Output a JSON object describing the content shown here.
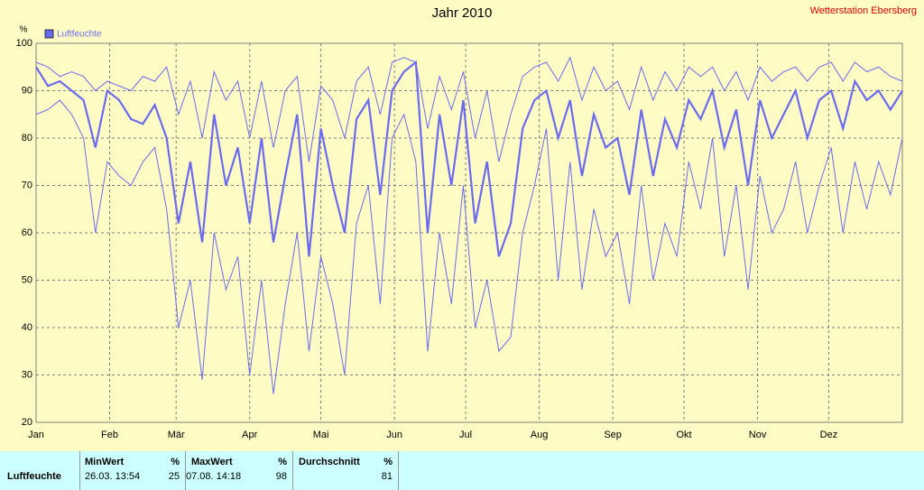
{
  "chart_data": {
    "type": "line",
    "title": "Jahr 2010",
    "station": "Wetterstation Ebersberg",
    "y_label": "%",
    "x": [
      0,
      5,
      10,
      15,
      20,
      25,
      30,
      35,
      40,
      45,
      50,
      55,
      60,
      65,
      70,
      75,
      80,
      85,
      90,
      95,
      100,
      105,
      110,
      115,
      120,
      125,
      130,
      135,
      140,
      145,
      150,
      155,
      160,
      165,
      170,
      175,
      180,
      185,
      190,
      195,
      200,
      205,
      210,
      215,
      220,
      225,
      230,
      235,
      240,
      245,
      250,
      255,
      260,
      265,
      270,
      275,
      280,
      285,
      290,
      295,
      300,
      305,
      310,
      315,
      320,
      325,
      330,
      335,
      340,
      345,
      350,
      355,
      360,
      365
    ],
    "series": [
      {
        "name": "Luftfeuchte",
        "color": "#6b6bf0",
        "values": [
          95,
          91,
          92,
          90,
          88,
          78,
          90,
          88,
          84,
          83,
          87,
          80,
          62,
          75,
          58,
          85,
          70,
          78,
          62,
          80,
          58,
          72,
          85,
          55,
          82,
          70,
          60,
          84,
          88,
          68,
          90,
          94,
          96,
          60,
          85,
          70,
          88,
          62,
          75,
          55,
          62,
          82,
          88,
          90,
          80,
          88,
          72,
          85,
          78,
          80,
          68,
          86,
          72,
          84,
          78,
          88,
          84,
          90,
          78,
          86,
          70,
          88,
          80,
          85,
          90,
          80,
          88,
          90,
          82,
          92,
          88,
          90,
          86,
          90
        ],
        "high": [
          96,
          95,
          93,
          94,
          93,
          90,
          92,
          91,
          90,
          93,
          92,
          95,
          85,
          92,
          80,
          94,
          88,
          92,
          80,
          92,
          78,
          90,
          93,
          75,
          91,
          88,
          80,
          92,
          95,
          85,
          96,
          97,
          96,
          82,
          93,
          86,
          94,
          80,
          90,
          75,
          85,
          93,
          95,
          96,
          92,
          97,
          88,
          95,
          90,
          92,
          86,
          95,
          88,
          94,
          90,
          95,
          93,
          95,
          90,
          94,
          88,
          95,
          92,
          94,
          95,
          92,
          95,
          96,
          92,
          96,
          94,
          95,
          93,
          92
        ],
        "low": [
          85,
          86,
          88,
          85,
          80,
          60,
          75,
          72,
          70,
          75,
          78,
          65,
          40,
          50,
          29,
          60,
          48,
          55,
          30,
          50,
          26,
          45,
          60,
          35,
          55,
          45,
          30,
          62,
          70,
          45,
          80,
          85,
          75,
          35,
          60,
          45,
          70,
          40,
          50,
          35,
          38,
          60,
          70,
          82,
          50,
          75,
          48,
          65,
          55,
          60,
          45,
          70,
          50,
          62,
          55,
          75,
          65,
          80,
          55,
          70,
          48,
          72,
          60,
          65,
          75,
          60,
          70,
          78,
          60,
          75,
          65,
          75,
          68,
          80
        ]
      }
    ],
    "xlim": [
      0,
      365
    ],
    "xticks": [
      {
        "value": 0,
        "label": "Jan"
      },
      {
        "value": 31,
        "label": "Feb"
      },
      {
        "value": 59,
        "label": "Mär"
      },
      {
        "value": 90,
        "label": "Apr"
      },
      {
        "value": 120,
        "label": "Mai"
      },
      {
        "value": 151,
        "label": "Jun"
      },
      {
        "value": 181,
        "label": "Jul"
      },
      {
        "value": 212,
        "label": "Aug"
      },
      {
        "value": 243,
        "label": "Sep"
      },
      {
        "value": 273,
        "label": "Okt"
      },
      {
        "value": 304,
        "label": "Nov"
      },
      {
        "value": 334,
        "label": "Dez"
      }
    ],
    "ylim": [
      20,
      100
    ],
    "yticks": [
      20,
      30,
      40,
      50,
      60,
      70,
      80,
      90,
      100
    ],
    "grid": true
  },
  "table": {
    "headers": [
      "MinWert",
      "%",
      "MaxWert",
      "%",
      "Durchschnitt",
      "%"
    ],
    "rows": [
      [
        "Luftfeuchte",
        "26.03.  13:54",
        "25",
        "07.08.  14:18",
        "98",
        "81"
      ]
    ]
  }
}
